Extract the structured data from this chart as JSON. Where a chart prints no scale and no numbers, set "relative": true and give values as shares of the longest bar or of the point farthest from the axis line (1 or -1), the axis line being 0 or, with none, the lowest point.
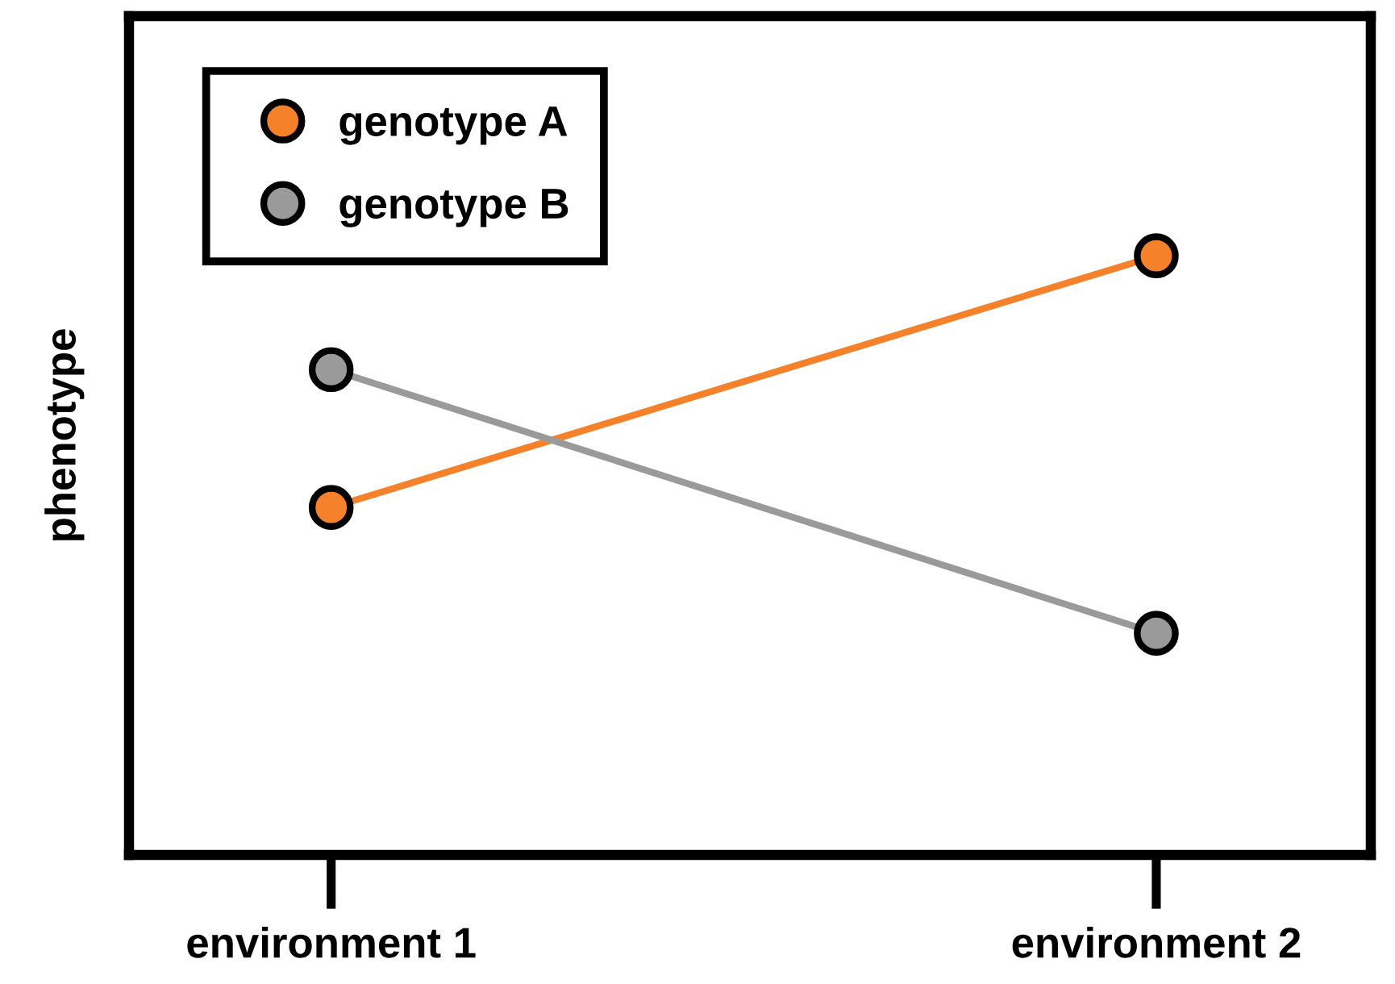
{
  "chart_data": {
    "type": "line",
    "ylabel": "phenotype",
    "categories": [
      "environment 1",
      "environment 2"
    ],
    "relative": true,
    "series": [
      {
        "name": "genotype A",
        "color": "#f5822a",
        "values": [
          0.58,
          1
        ]
      },
      {
        "name": "genotype B",
        "color": "#9a9a9a",
        "values": [
          0.81,
          0.37
        ]
      }
    ],
    "legend": "top left",
    "marker": "circle",
    "line_style": "solid"
  }
}
